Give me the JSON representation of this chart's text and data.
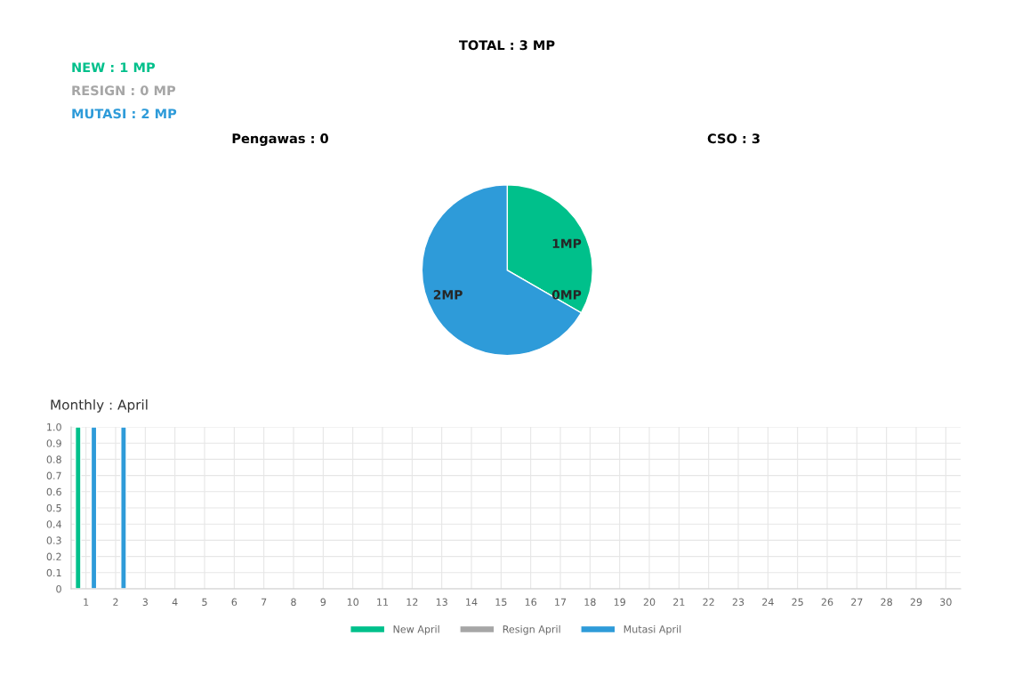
{
  "chart_data": [
    {
      "type": "pie",
      "categories": [
        null,
        null,
        null
      ],
      "values": [
        1,
        0,
        2
      ],
      "colors": [
        "#00c08b",
        "#a6a6a6",
        "#2e9bd9"
      ],
      "value_labels": [
        "1MP",
        "0MP",
        "2MP"
      ],
      "annotations": [
        "TOTAL : 3 MP",
        "NEW : 1 MP",
        "RESIGN : 0 MP",
        "MUTASI : 2 MP",
        "Pengawas : 0",
        "CSO : 3"
      ]
    },
    {
      "type": "bar",
      "title": "Monthly : April",
      "x": [
        1,
        2,
        3,
        4,
        5,
        6,
        7,
        8,
        9,
        10,
        11,
        12,
        13,
        14,
        15,
        16,
        17,
        18,
        19,
        20,
        21,
        22,
        23,
        24,
        25,
        26,
        27,
        28,
        29,
        30
      ],
      "xlim": [
        0.5,
        30.5
      ],
      "xticks": [
        1,
        2,
        3,
        4,
        5,
        6,
        7,
        8,
        9,
        10,
        11,
        12,
        13,
        14,
        15,
        16,
        17,
        18,
        19,
        20,
        21,
        22,
        23,
        24,
        25,
        26,
        27,
        28,
        29,
        30
      ],
      "series": [
        {
          "name": "New April",
          "color": "#00c08b",
          "values": [
            1,
            0,
            0,
            0,
            0,
            0,
            0,
            0,
            0,
            0,
            0,
            0,
            0,
            0,
            0,
            0,
            0,
            0,
            0,
            0,
            0,
            0,
            0,
            0,
            0,
            0,
            0,
            0,
            0,
            0
          ]
        },
        {
          "name": "Resign April",
          "color": "#a6a6a6",
          "values": [
            0,
            0,
            0,
            0,
            0,
            0,
            0,
            0,
            0,
            0,
            0,
            0,
            0,
            0,
            0,
            0,
            0,
            0,
            0,
            0,
            0,
            0,
            0,
            0,
            0,
            0,
            0,
            0,
            0,
            0
          ]
        },
        {
          "name": "Mutasi April",
          "color": "#2e9bd9",
          "values": [
            1,
            1,
            0,
            0,
            0,
            0,
            0,
            0,
            0,
            0,
            0,
            0,
            0,
            0,
            0,
            0,
            0,
            0,
            0,
            0,
            0,
            0,
            0,
            0,
            0,
            0,
            0,
            0,
            0,
            0
          ]
        }
      ],
      "ylim": [
        0,
        1
      ],
      "yticks": [
        0,
        0.1,
        0.2,
        0.3,
        0.4,
        0.5,
        0.6,
        0.7,
        0.8,
        0.9,
        {
          "value": 1,
          "label": "1.0"
        }
      ],
      "grid": true,
      "legend": "bottom"
    }
  ]
}
